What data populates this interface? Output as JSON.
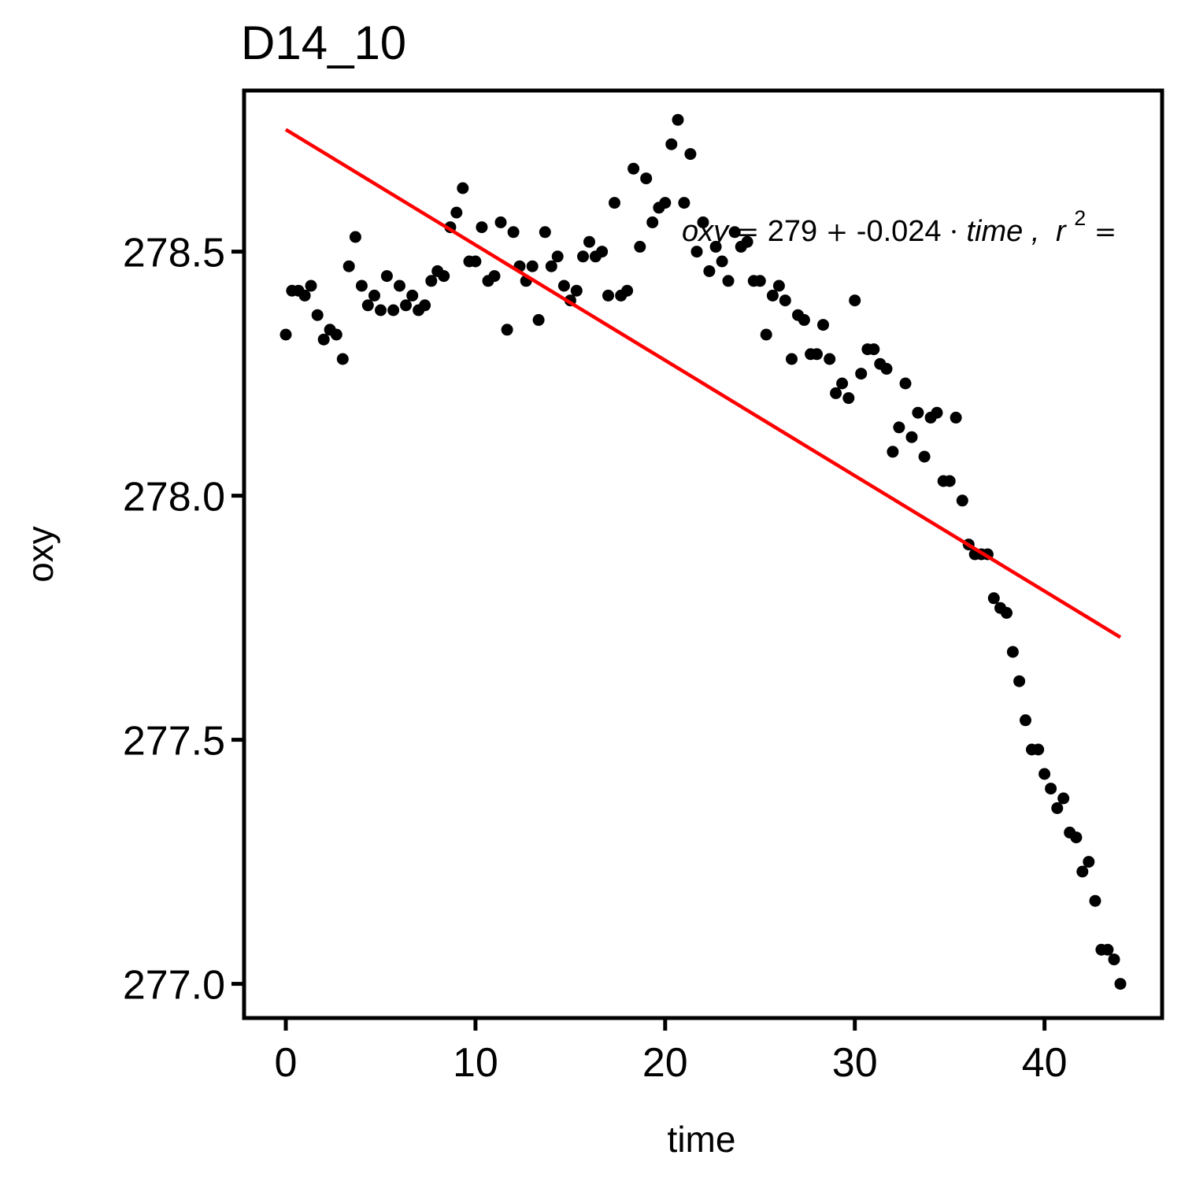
{
  "chart_data": {
    "type": "scatter",
    "title": "D14_10",
    "xlabel": "time",
    "ylabel": "oxy",
    "xlim": [
      -2.2,
      46.2
    ],
    "ylim": [
      276.93,
      278.83
    ],
    "xticks": [
      0,
      10,
      20,
      30,
      40
    ],
    "xtick_labels": [
      "0",
      "10",
      "20",
      "30",
      "40"
    ],
    "yticks": [
      277.0,
      277.5,
      278.0,
      278.5
    ],
    "ytick_labels": [
      "277.0",
      "277.5",
      "278.0",
      "278.5"
    ],
    "grid": false,
    "colors": {
      "points": "#000000",
      "fit_line": "#ff0000",
      "frame": "#000000"
    },
    "fit_line": {
      "x": [
        0,
        44
      ],
      "y": [
        278.75,
        277.71
      ]
    },
    "annotation": {
      "lhs": "oxy",
      "eq_sign": "=",
      "intercept": "279",
      "plus": "+",
      "slope": "-0.024",
      "dot": "·",
      "var": "time",
      "comma": ",",
      "r": "r",
      "sup": "2",
      "trailing": "="
    },
    "series": [
      {
        "x": [
          0.0,
          0.33,
          0.67,
          1.0,
          1.33,
          1.67,
          2.0,
          2.33,
          2.67,
          3.0,
          3.33,
          3.67,
          4.0,
          4.33,
          4.67,
          5.0,
          5.33,
          5.67,
          6.0,
          6.33,
          6.67,
          7.0,
          7.33,
          7.67,
          8.0,
          8.33,
          8.67,
          9.0,
          9.33,
          9.67,
          10.0,
          10.33,
          10.67,
          11.0,
          11.33,
          11.67,
          12.0,
          12.33,
          12.67,
          13.0,
          13.33,
          13.67,
          14.0,
          14.33,
          14.67,
          15.0,
          15.33,
          15.67,
          16.0,
          16.33,
          16.67,
          17.0,
          17.33,
          17.67,
          18.0,
          18.33,
          18.67,
          19.0,
          19.33,
          19.67,
          20.0,
          20.33,
          20.67,
          21.0,
          21.33,
          21.67,
          22.0,
          22.33,
          22.67,
          23.0,
          23.33,
          23.67,
          24.0,
          24.33,
          24.67,
          25.0,
          25.33,
          25.67,
          26.0,
          26.33,
          26.67,
          27.0,
          27.33,
          27.67,
          28.0,
          28.33,
          28.67,
          29.0,
          29.33,
          29.67,
          30.0,
          30.33,
          30.67,
          31.0,
          31.33,
          31.67,
          32.0,
          32.33,
          32.67,
          33.0,
          33.33,
          33.67,
          34.0,
          34.33,
          34.67,
          35.0,
          35.33,
          35.67,
          36.0,
          36.33,
          36.67,
          37.0,
          37.33,
          37.67,
          38.0,
          38.33,
          38.67,
          39.0,
          39.33,
          39.67,
          40.0,
          40.33,
          40.67,
          41.0,
          41.33,
          41.67,
          42.0,
          42.33,
          42.67,
          43.0,
          43.33,
          43.67,
          44.0
        ],
        "y": [
          278.33,
          278.42,
          278.42,
          278.41,
          278.43,
          278.37,
          278.32,
          278.34,
          278.33,
          278.28,
          278.47,
          278.53,
          278.43,
          278.39,
          278.41,
          278.38,
          278.45,
          278.38,
          278.43,
          278.39,
          278.41,
          278.38,
          278.39,
          278.44,
          278.46,
          278.45,
          278.55,
          278.58,
          278.63,
          278.48,
          278.48,
          278.55,
          278.44,
          278.45,
          278.56,
          278.34,
          278.54,
          278.47,
          278.44,
          278.47,
          278.36,
          278.54,
          278.47,
          278.49,
          278.43,
          278.4,
          278.42,
          278.49,
          278.52,
          278.49,
          278.5,
          278.41,
          278.6,
          278.41,
          278.42,
          278.67,
          278.51,
          278.65,
          278.56,
          278.59,
          278.6,
          278.72,
          278.77,
          278.6,
          278.7,
          278.5,
          278.56,
          278.46,
          278.51,
          278.48,
          278.44,
          278.54,
          278.51,
          278.52,
          278.44,
          278.44,
          278.33,
          278.41,
          278.43,
          278.4,
          278.28,
          278.37,
          278.36,
          278.29,
          278.29,
          278.35,
          278.28,
          278.21,
          278.23,
          278.2,
          278.4,
          278.25,
          278.3,
          278.3,
          278.27,
          278.26,
          278.09,
          278.14,
          278.23,
          278.12,
          278.17,
          278.08,
          278.16,
          278.17,
          278.03,
          278.03,
          278.16,
          277.99,
          277.9,
          277.88,
          277.88,
          277.88,
          277.79,
          277.77,
          277.76,
          277.68,
          277.62,
          277.54,
          277.48,
          277.48,
          277.43,
          277.4,
          277.36,
          277.38,
          277.31,
          277.3,
          277.23,
          277.25,
          277.17,
          277.07,
          277.07,
          277.05,
          277.0
        ]
      }
    ]
  }
}
